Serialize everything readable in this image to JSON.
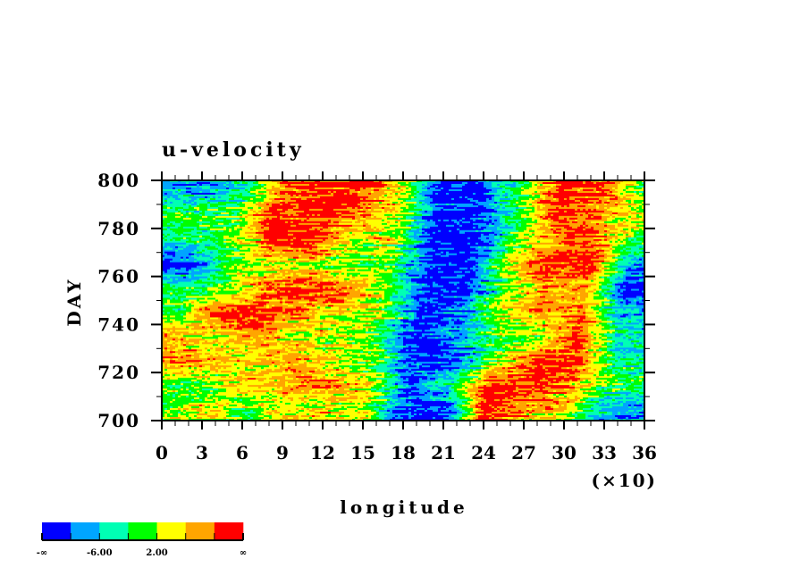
{
  "chart_data": {
    "type": "heatmap",
    "title": "u-velocity",
    "xlabel": "longitude",
    "ylabel": "DAY",
    "x_multiplier_label": "(×10)",
    "xlim": [
      0,
      36
    ],
    "ylim": [
      700,
      800
    ],
    "x_ticks": [
      0,
      3,
      6,
      9,
      12,
      15,
      18,
      21,
      24,
      27,
      30,
      33,
      36
    ],
    "x_tick_labels": [
      "0",
      "3",
      "6",
      "9",
      "12",
      "15",
      "18",
      "21",
      "24",
      "27",
      "30",
      "33",
      "36"
    ],
    "y_ticks": [
      700,
      720,
      740,
      760,
      780,
      800
    ],
    "y_tick_labels": [
      "700",
      "720",
      "740",
      "760",
      "780",
      "800"
    ],
    "grid": false,
    "colorbar": {
      "colors": [
        "#0000ff",
        "#00a5ff",
        "#00ffb4",
        "#00ff00",
        "#ffff00",
        "#ffa500",
        "#ff0000"
      ],
      "labels": [
        {
          "boundary": 0,
          "text": "-∞"
        },
        {
          "boundary": 2,
          "text": "-6.00"
        },
        {
          "boundary": 4,
          "text": "2.00"
        },
        {
          "boundary": 7,
          "text": "∞"
        }
      ],
      "placement": "bottom-left"
    },
    "approx_level_grid": {
      "longitude_x10": [
        1.5,
        4.5,
        7.5,
        10.5,
        13.5,
        16.5,
        19.5,
        22.5,
        25.5,
        28.5,
        31.5,
        34.5
      ],
      "days": [
        795,
        785,
        775,
        765,
        755,
        745,
        735,
        725,
        715,
        705
      ],
      "levels": [
        [
          1,
          2,
          5,
          6,
          6,
          4,
          0,
          0,
          3,
          6,
          6,
          3
        ],
        [
          3,
          3,
          6,
          6,
          5,
          4,
          0,
          0,
          3,
          6,
          5,
          4
        ],
        [
          2,
          3,
          6,
          6,
          4,
          4,
          0,
          0,
          3,
          5,
          6,
          3
        ],
        [
          0,
          3,
          4,
          4,
          3,
          3,
          0,
          0,
          4,
          6,
          6,
          1
        ],
        [
          3,
          3,
          5,
          6,
          6,
          3,
          0,
          0,
          3,
          5,
          5,
          0
        ],
        [
          3,
          6,
          6,
          5,
          4,
          4,
          0,
          1,
          4,
          5,
          5,
          1
        ],
        [
          5,
          4,
          5,
          4,
          4,
          3,
          0,
          1,
          3,
          3,
          6,
          2
        ],
        [
          5,
          5,
          4,
          5,
          4,
          3,
          0,
          0,
          3,
          6,
          6,
          2
        ],
        [
          3,
          3,
          5,
          5,
          5,
          4,
          1,
          2,
          6,
          6,
          5,
          3
        ],
        [
          3,
          4,
          3,
          4,
          4,
          4,
          0,
          0,
          6,
          5,
          4,
          1
        ]
      ]
    }
  }
}
